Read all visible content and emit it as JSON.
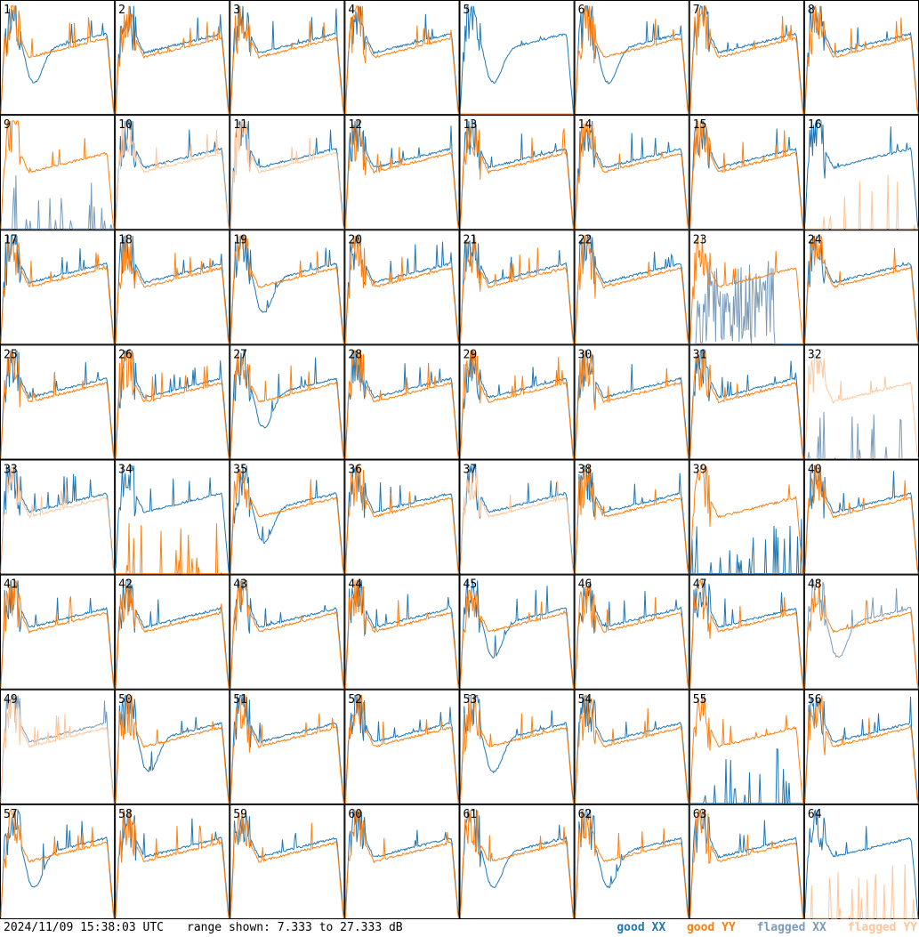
{
  "timestamp": "2024/11/09 15:38:03 UTC",
  "range_text": "range shown: 7.333 to 27.333 dB",
  "legend": [
    {
      "label": "good XX",
      "color": "#1f77b4"
    },
    {
      "label": "good YY",
      "color": "#ff7f0e"
    },
    {
      "label": "flagged XX",
      "color": "#7a9cbb"
    },
    {
      "label": "flagged YY",
      "color": "#ffc59a"
    }
  ],
  "chart_data": {
    "type": "line",
    "rows": 8,
    "cols": 8,
    "ylim": [
      7.333,
      27.333
    ],
    "panels": [
      {
        "label": "1",
        "xx": "good",
        "yy": "good",
        "profile": "dip"
      },
      {
        "label": "2",
        "xx": "good",
        "yy": "good",
        "profile": "flat"
      },
      {
        "label": "3",
        "xx": "good",
        "yy": "good",
        "profile": "flat"
      },
      {
        "label": "4",
        "xx": "good",
        "yy": "good",
        "profile": "flat"
      },
      {
        "label": "5",
        "xx": "good",
        "yy": "good",
        "profile": "dip",
        "yy_profile": "empty"
      },
      {
        "label": "6",
        "xx": "good",
        "yy": "good",
        "profile": "dip"
      },
      {
        "label": "7",
        "xx": "good",
        "yy": "good",
        "profile": "flat"
      },
      {
        "label": "8",
        "xx": "good",
        "yy": "good",
        "profile": "flat"
      },
      {
        "label": "9",
        "xx": "flagged",
        "yy": "good",
        "profile": "flat",
        "xx_profile": "spikes"
      },
      {
        "label": "10",
        "xx": "good",
        "yy": "flagged",
        "profile": "flat"
      },
      {
        "label": "11",
        "xx": "good",
        "yy": "flagged",
        "profile": "flat"
      },
      {
        "label": "12",
        "xx": "good",
        "yy": "good",
        "profile": "flat"
      },
      {
        "label": "13",
        "xx": "good",
        "yy": "good",
        "profile": "flat"
      },
      {
        "label": "14",
        "xx": "good",
        "yy": "good",
        "profile": "flat"
      },
      {
        "label": "15",
        "xx": "good",
        "yy": "good",
        "profile": "flat"
      },
      {
        "label": "16",
        "xx": "good",
        "yy": "flagged",
        "profile": "flat",
        "yy_profile": "spikes"
      },
      {
        "label": "17",
        "xx": "good",
        "yy": "good",
        "profile": "flat"
      },
      {
        "label": "18",
        "xx": "good",
        "yy": "good",
        "profile": "flat"
      },
      {
        "label": "19",
        "xx": "good",
        "yy": "good",
        "profile": "dip"
      },
      {
        "label": "20",
        "xx": "good",
        "yy": "good",
        "profile": "flat"
      },
      {
        "label": "21",
        "xx": "good",
        "yy": "good",
        "profile": "flat"
      },
      {
        "label": "22",
        "xx": "good",
        "yy": "good",
        "profile": "flat"
      },
      {
        "label": "23",
        "xx": "flagged",
        "yy": "good",
        "profile": "flat",
        "xx_profile": "noisy"
      },
      {
        "label": "24",
        "xx": "good",
        "yy": "good",
        "profile": "flat"
      },
      {
        "label": "25",
        "xx": "good",
        "yy": "good",
        "profile": "flat"
      },
      {
        "label": "26",
        "xx": "good",
        "yy": "good",
        "profile": "flat"
      },
      {
        "label": "27",
        "xx": "good",
        "yy": "good",
        "profile": "dip"
      },
      {
        "label": "28",
        "xx": "good",
        "yy": "good",
        "profile": "flat"
      },
      {
        "label": "29",
        "xx": "good",
        "yy": "good",
        "profile": "flat"
      },
      {
        "label": "30",
        "xx": "good",
        "yy": "good",
        "profile": "flat"
      },
      {
        "label": "31",
        "xx": "good",
        "yy": "good",
        "profile": "flat"
      },
      {
        "label": "32",
        "xx": "flagged",
        "yy": "flagged",
        "profile": "flat",
        "xx_profile": "spikes"
      },
      {
        "label": "33",
        "xx": "good",
        "yy": "flagged",
        "profile": "flat"
      },
      {
        "label": "34",
        "xx": "good",
        "yy": "good",
        "profile": "flat",
        "yy_profile": "spikes"
      },
      {
        "label": "35",
        "xx": "good",
        "yy": "good",
        "profile": "dip"
      },
      {
        "label": "36",
        "xx": "good",
        "yy": "good",
        "profile": "flat"
      },
      {
        "label": "37",
        "xx": "good",
        "yy": "flagged",
        "profile": "flat"
      },
      {
        "label": "38",
        "xx": "good",
        "yy": "good",
        "profile": "flat"
      },
      {
        "label": "39",
        "xx": "good",
        "yy": "good",
        "profile": "flat",
        "xx_profile": "spikes"
      },
      {
        "label": "40",
        "xx": "good",
        "yy": "good",
        "profile": "flat"
      },
      {
        "label": "41",
        "xx": "good",
        "yy": "good",
        "profile": "flat"
      },
      {
        "label": "42",
        "xx": "good",
        "yy": "good",
        "profile": "flat"
      },
      {
        "label": "43",
        "xx": "good",
        "yy": "good",
        "profile": "flat"
      },
      {
        "label": "44",
        "xx": "good",
        "yy": "good",
        "profile": "flat"
      },
      {
        "label": "45",
        "xx": "good",
        "yy": "good",
        "profile": "dip"
      },
      {
        "label": "46",
        "xx": "good",
        "yy": "good",
        "profile": "flat"
      },
      {
        "label": "47",
        "xx": "good",
        "yy": "good",
        "profile": "flat"
      },
      {
        "label": "48",
        "xx": "flagged",
        "yy": "good",
        "profile": "dip"
      },
      {
        "label": "49",
        "xx": "flagged",
        "yy": "flagged",
        "profile": "flat"
      },
      {
        "label": "50",
        "xx": "good",
        "yy": "good",
        "profile": "dip"
      },
      {
        "label": "51",
        "xx": "good",
        "yy": "good",
        "profile": "flat"
      },
      {
        "label": "52",
        "xx": "good",
        "yy": "good",
        "profile": "flat"
      },
      {
        "label": "53",
        "xx": "good",
        "yy": "good",
        "profile": "dip"
      },
      {
        "label": "54",
        "xx": "good",
        "yy": "good",
        "profile": "flat"
      },
      {
        "label": "55",
        "xx": "good",
        "yy": "good",
        "profile": "flat",
        "xx_profile": "spikes"
      },
      {
        "label": "56",
        "xx": "good",
        "yy": "good",
        "profile": "flat"
      },
      {
        "label": "57",
        "xx": "good",
        "yy": "good",
        "profile": "dip"
      },
      {
        "label": "58",
        "xx": "good",
        "yy": "good",
        "profile": "flat"
      },
      {
        "label": "59",
        "xx": "good",
        "yy": "good",
        "profile": "flat"
      },
      {
        "label": "60",
        "xx": "good",
        "yy": "good",
        "profile": "flat"
      },
      {
        "label": "61",
        "xx": "good",
        "yy": "good",
        "profile": "dip"
      },
      {
        "label": "62",
        "xx": "good",
        "yy": "good",
        "profile": "dip"
      },
      {
        "label": "63",
        "xx": "good",
        "yy": "good",
        "profile": "flat"
      },
      {
        "label": "64",
        "xx": "good",
        "yy": "flagged",
        "profile": "flat",
        "yy_profile": "spikes"
      }
    ]
  }
}
